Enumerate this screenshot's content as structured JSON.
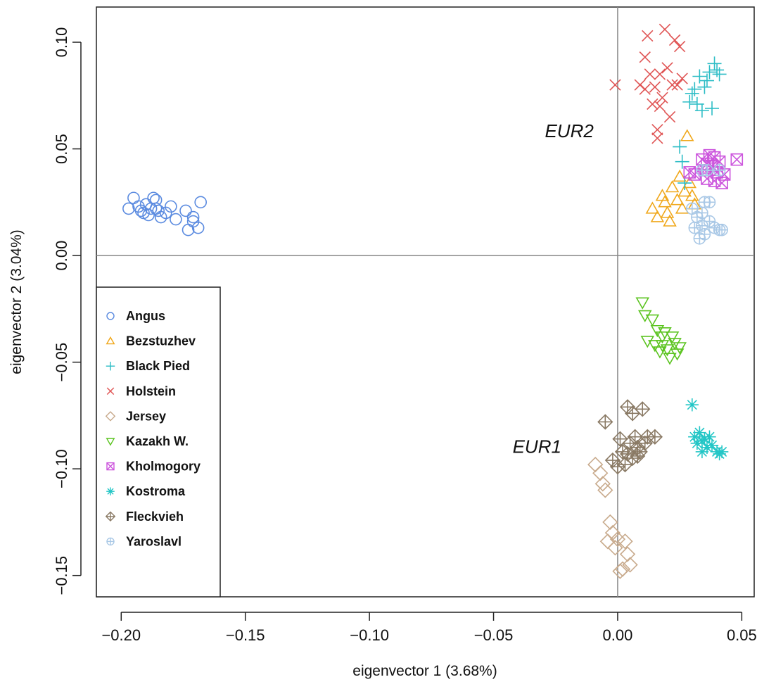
{
  "chart_data": {
    "type": "scatter",
    "xlabel": "eigenvector 1 (3.68%)",
    "ylabel": "eigenvector 2 (3.04%)",
    "xlim": [
      -0.21,
      0.055
    ],
    "ylim": [
      -0.16,
      0.1165
    ],
    "x_ticks": [
      "−0.20",
      "−0.15",
      "−0.10",
      "−0.05",
      "0.00",
      "0.05"
    ],
    "x_tick_values": [
      -0.2,
      -0.15,
      -0.1,
      -0.05,
      0.0,
      0.05
    ],
    "y_ticks": [
      "−0.15",
      "−0.10",
      "−0.05",
      "0.00",
      "0.05",
      "0.10"
    ],
    "y_tick_values": [
      -0.15,
      -0.1,
      -0.05,
      0.0,
      0.05,
      0.1
    ],
    "reference_lines": {
      "x": 0.0,
      "y": 0.0,
      "color": "#888888"
    },
    "grid": false,
    "legend_position": "bottom-left",
    "annotations": [
      {
        "text": "EUR2",
        "x": -0.0195,
        "y": 0.0555
      },
      {
        "text": "EUR1",
        "x": -0.0325,
        "y": -0.0925
      }
    ],
    "series": [
      {
        "name": "Angus",
        "marker": "circle",
        "color": "#5b8be0",
        "points": [
          [
            -0.197,
            0.022
          ],
          [
            -0.195,
            0.027
          ],
          [
            -0.193,
            0.023
          ],
          [
            -0.192,
            0.021
          ],
          [
            -0.191,
            0.02
          ],
          [
            -0.19,
            0.024
          ],
          [
            -0.189,
            0.019
          ],
          [
            -0.188,
            0.022
          ],
          [
            -0.187,
            0.027
          ],
          [
            -0.186,
            0.026
          ],
          [
            -0.186,
            0.022
          ],
          [
            -0.185,
            0.021
          ],
          [
            -0.184,
            0.018
          ],
          [
            -0.182,
            0.02
          ],
          [
            -0.18,
            0.023
          ],
          [
            -0.178,
            0.017
          ],
          [
            -0.174,
            0.021
          ],
          [
            -0.173,
            0.012
          ],
          [
            -0.171,
            0.016
          ],
          [
            -0.171,
            0.018
          ],
          [
            -0.169,
            0.013
          ],
          [
            -0.168,
            0.025
          ]
        ]
      },
      {
        "name": "Bezstuzhev",
        "marker": "triangle-up",
        "color": "#f0a81c",
        "points": [
          [
            0.014,
            0.022
          ],
          [
            0.016,
            0.018
          ],
          [
            0.018,
            0.028
          ],
          [
            0.019,
            0.025
          ],
          [
            0.02,
            0.02
          ],
          [
            0.021,
            0.016
          ],
          [
            0.022,
            0.032
          ],
          [
            0.024,
            0.026
          ],
          [
            0.025,
            0.037
          ],
          [
            0.026,
            0.022
          ],
          [
            0.027,
            0.03
          ],
          [
            0.028,
            0.056
          ],
          [
            0.029,
            0.034
          ],
          [
            0.03,
            0.028
          ],
          [
            0.031,
            0.024
          ]
        ]
      },
      {
        "name": "Black Pied",
        "marker": "plus",
        "color": "#2dbdc6",
        "points": [
          [
            0.025,
            0.051
          ],
          [
            0.026,
            0.044
          ],
          [
            0.027,
            0.034
          ],
          [
            0.029,
            0.072
          ],
          [
            0.03,
            0.076
          ],
          [
            0.031,
            0.078
          ],
          [
            0.032,
            0.071
          ],
          [
            0.033,
            0.084
          ],
          [
            0.034,
            0.068
          ],
          [
            0.035,
            0.079
          ],
          [
            0.036,
            0.082
          ],
          [
            0.037,
            0.086
          ],
          [
            0.038,
            0.069
          ],
          [
            0.039,
            0.09
          ],
          [
            0.04,
            0.087
          ],
          [
            0.041,
            0.085
          ]
        ]
      },
      {
        "name": "Holstein",
        "marker": "x",
        "color": "#e05555",
        "points": [
          [
            -0.001,
            0.08
          ],
          [
            0.009,
            0.08
          ],
          [
            0.011,
            0.093
          ],
          [
            0.011,
            0.078
          ],
          [
            0.012,
            0.103
          ],
          [
            0.013,
            0.085
          ],
          [
            0.014,
            0.071
          ],
          [
            0.015,
            0.079
          ],
          [
            0.016,
            0.059
          ],
          [
            0.016,
            0.055
          ],
          [
            0.017,
            0.085
          ],
          [
            0.017,
            0.07
          ],
          [
            0.018,
            0.074
          ],
          [
            0.019,
            0.106
          ],
          [
            0.02,
            0.088
          ],
          [
            0.021,
            0.065
          ],
          [
            0.022,
            0.08
          ],
          [
            0.023,
            0.101
          ],
          [
            0.024,
            0.08
          ],
          [
            0.025,
            0.098
          ],
          [
            0.026,
            0.083
          ]
        ]
      },
      {
        "name": "Jersey",
        "marker": "diamond",
        "color": "#c8aa8c",
        "points": [
          [
            -0.009,
            -0.098
          ],
          [
            -0.007,
            -0.102
          ],
          [
            -0.006,
            -0.107
          ],
          [
            -0.005,
            -0.11
          ],
          [
            -0.003,
            -0.125
          ],
          [
            -0.002,
            -0.13
          ],
          [
            -0.001,
            -0.137
          ],
          [
            0.0,
            -0.133
          ],
          [
            0.001,
            -0.148
          ],
          [
            0.002,
            -0.147
          ],
          [
            0.003,
            -0.134
          ],
          [
            0.004,
            -0.14
          ],
          [
            0.005,
            -0.145
          ],
          [
            -0.004,
            -0.134
          ]
        ]
      },
      {
        "name": "Kazakh W.",
        "marker": "triangle-down",
        "color": "#5cc421",
        "points": [
          [
            0.01,
            -0.022
          ],
          [
            0.011,
            -0.028
          ],
          [
            0.012,
            -0.04
          ],
          [
            0.014,
            -0.03
          ],
          [
            0.015,
            -0.042
          ],
          [
            0.016,
            -0.035
          ],
          [
            0.017,
            -0.045
          ],
          [
            0.018,
            -0.038
          ],
          [
            0.019,
            -0.036
          ],
          [
            0.02,
            -0.044
          ],
          [
            0.021,
            -0.048
          ],
          [
            0.022,
            -0.038
          ],
          [
            0.023,
            -0.041
          ],
          [
            0.024,
            -0.046
          ],
          [
            0.025,
            -0.043
          ],
          [
            0.018,
            -0.042
          ]
        ]
      },
      {
        "name": "Kholmogory",
        "marker": "boxed-x",
        "color": "#cc55dd",
        "points": [
          [
            0.029,
            0.039
          ],
          [
            0.031,
            0.038
          ],
          [
            0.034,
            0.045
          ],
          [
            0.035,
            0.04
          ],
          [
            0.036,
            0.036
          ],
          [
            0.037,
            0.047
          ],
          [
            0.038,
            0.042
          ],
          [
            0.039,
            0.035
          ],
          [
            0.04,
            0.039
          ],
          [
            0.041,
            0.044
          ],
          [
            0.042,
            0.034
          ],
          [
            0.043,
            0.038
          ],
          [
            0.048,
            0.045
          ],
          [
            0.036,
            0.043
          ],
          [
            0.039,
            0.046
          ]
        ]
      },
      {
        "name": "Kostroma",
        "marker": "asterisk",
        "color": "#22c6c6",
        "points": [
          [
            0.03,
            -0.07
          ],
          [
            0.031,
            -0.085
          ],
          [
            0.032,
            -0.088
          ],
          [
            0.033,
            -0.083
          ],
          [
            0.034,
            -0.092
          ],
          [
            0.035,
            -0.086
          ],
          [
            0.036,
            -0.09
          ],
          [
            0.037,
            -0.085
          ],
          [
            0.038,
            -0.089
          ],
          [
            0.04,
            -0.092
          ],
          [
            0.041,
            -0.093
          ],
          [
            0.042,
            -0.092
          ],
          [
            0.034,
            -0.087
          ]
        ]
      },
      {
        "name": "Fleckvieh",
        "marker": "diamond-plus",
        "color": "#8a7a65",
        "points": [
          [
            -0.005,
            -0.078
          ],
          [
            -0.002,
            -0.096
          ],
          [
            0.0,
            -0.099
          ],
          [
            0.001,
            -0.086
          ],
          [
            0.002,
            -0.092
          ],
          [
            0.003,
            -0.098
          ],
          [
            0.004,
            -0.071
          ],
          [
            0.005,
            -0.088
          ],
          [
            0.006,
            -0.074
          ],
          [
            0.006,
            -0.095
          ],
          [
            0.007,
            -0.085
          ],
          [
            0.008,
            -0.09
          ],
          [
            0.009,
            -0.092
          ],
          [
            0.01,
            -0.072
          ],
          [
            0.011,
            -0.088
          ],
          [
            0.012,
            -0.085
          ],
          [
            0.015,
            -0.085
          ],
          [
            0.004,
            -0.093
          ],
          [
            0.008,
            -0.094
          ]
        ]
      },
      {
        "name": "Yaroslavl",
        "marker": "circle-plus",
        "color": "#a9c8e6",
        "points": [
          [
            0.03,
            0.022
          ],
          [
            0.031,
            0.013
          ],
          [
            0.032,
            0.018
          ],
          [
            0.033,
            0.008
          ],
          [
            0.034,
            0.02
          ],
          [
            0.034,
            0.014
          ],
          [
            0.035,
            0.025
          ],
          [
            0.035,
            0.01
          ],
          [
            0.036,
            0.04
          ],
          [
            0.037,
            0.016
          ],
          [
            0.037,
            0.025
          ],
          [
            0.039,
            0.013
          ],
          [
            0.041,
            0.012
          ],
          [
            0.042,
            0.012
          ],
          [
            0.041,
            0.04
          ],
          [
            0.034,
            0.04
          ]
        ]
      }
    ]
  }
}
